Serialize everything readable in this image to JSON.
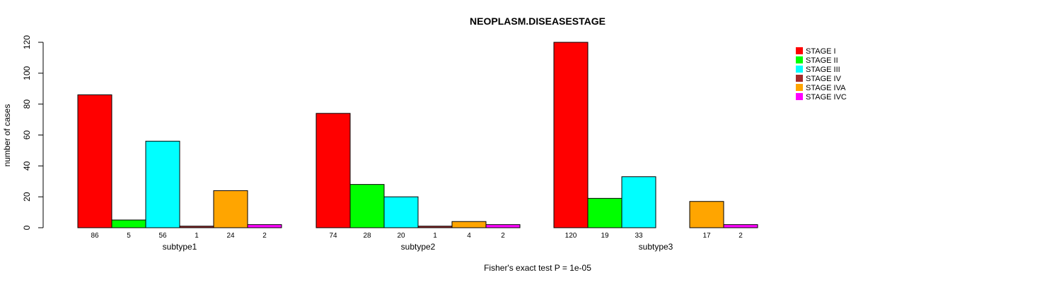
{
  "chart_data": {
    "type": "bar",
    "title": "NEOPLASM.DISEASESTAGE",
    "ylabel": "number of cases",
    "xlabel": "",
    "ylim": [
      0,
      120
    ],
    "yticks": [
      0,
      20,
      40,
      60,
      80,
      100,
      120
    ],
    "categories": [
      "subtype1",
      "subtype2",
      "subtype3"
    ],
    "series": [
      {
        "name": "STAGE I",
        "color": "#FF0000",
        "values": [
          86,
          74,
          120
        ]
      },
      {
        "name": "STAGE II",
        "color": "#00FF00",
        "values": [
          5,
          28,
          19
        ]
      },
      {
        "name": "STAGE III",
        "color": "#00FFFF",
        "values": [
          56,
          20,
          33
        ]
      },
      {
        "name": "STAGE IV",
        "color": "#A52A2A",
        "values": [
          1,
          1,
          0
        ]
      },
      {
        "name": "STAGE IVA",
        "color": "#FFA500",
        "values": [
          24,
          4,
          17
        ]
      },
      {
        "name": "STAGE IVC",
        "color": "#FF00FF",
        "values": [
          2,
          2,
          2
        ]
      }
    ],
    "value_labels": [
      [
        "86",
        "5",
        "56",
        "1",
        "24",
        "2"
      ],
      [
        "74",
        "28",
        "20",
        "1",
        "4",
        "2"
      ],
      [
        "120",
        "19",
        "33",
        "",
        "17",
        "2"
      ]
    ],
    "legend_position": "top-right",
    "footer": "Fisher's exact test P = 1e-05"
  }
}
